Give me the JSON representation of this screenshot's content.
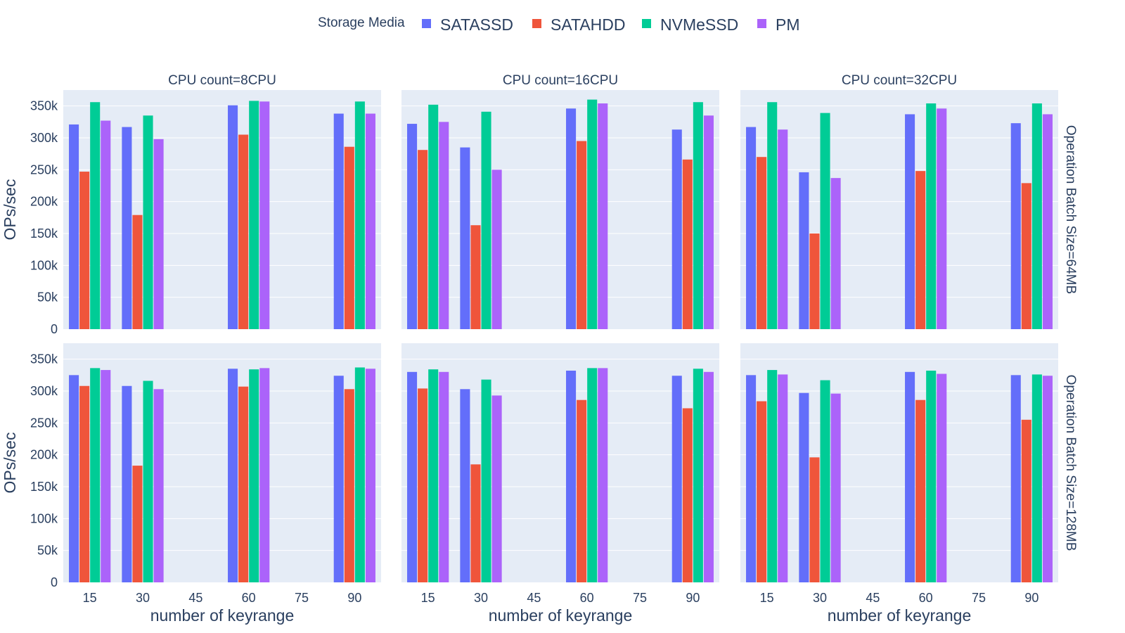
{
  "chart_data": {
    "type": "bar",
    "legend": {
      "title": "Storage Media",
      "placement": "top-center"
    },
    "series_names": [
      "SATASSD",
      "SATAHDD",
      "NVMeSSD",
      "PM"
    ],
    "colors": {
      "SATASSD": "#636efa",
      "SATAHDD": "#ef553b",
      "NVMeSSD": "#00cc96",
      "PM": "#ab63fa",
      "plot_bg": "#e5ecf6",
      "grid": "#ffffff",
      "text": "#2a3f5f"
    },
    "x_values": [
      15,
      30,
      60,
      90
    ],
    "x_ticks": [
      "15",
      "30",
      "45",
      "60",
      "75",
      "90"
    ],
    "xlim": [
      7.5,
      97.5
    ],
    "ylim": [
      0,
      375000
    ],
    "y_ticks": [
      {
        "value": 0,
        "label": "0"
      },
      {
        "value": 50000,
        "label": "50k"
      },
      {
        "value": 100000,
        "label": "100k"
      },
      {
        "value": 150000,
        "label": "150k"
      },
      {
        "value": 200000,
        "label": "200k"
      },
      {
        "value": 250000,
        "label": "250k"
      },
      {
        "value": 300000,
        "label": "300k"
      },
      {
        "value": 350000,
        "label": "350k"
      }
    ],
    "xlabel": "number of keyrange",
    "ylabel": "OPs/sec",
    "column_titles": [
      "CPU count=8CPU",
      "CPU count=16CPU",
      "CPU count=32CPU"
    ],
    "row_titles": [
      "Operation Batch Size=64MB",
      "Operation Batch Size=128MB"
    ],
    "panels": [
      {
        "row": 0,
        "col": 0,
        "series": [
          {
            "name": "SATASSD",
            "values": [
              321000,
              317000,
              351000,
              338000
            ]
          },
          {
            "name": "SATAHDD",
            "values": [
              247000,
              179000,
              305000,
              286000
            ]
          },
          {
            "name": "NVMeSSD",
            "values": [
              356000,
              335000,
              358000,
              357000
            ]
          },
          {
            "name": "PM",
            "values": [
              327000,
              298000,
              357000,
              338000
            ]
          }
        ]
      },
      {
        "row": 0,
        "col": 1,
        "series": [
          {
            "name": "SATASSD",
            "values": [
              322000,
              285000,
              346000,
              313000
            ]
          },
          {
            "name": "SATAHDD",
            "values": [
              281000,
              163000,
              295000,
              266000
            ]
          },
          {
            "name": "NVMeSSD",
            "values": [
              352000,
              341000,
              360000,
              356000
            ]
          },
          {
            "name": "PM",
            "values": [
              325000,
              250000,
              354000,
              335000
            ]
          }
        ]
      },
      {
        "row": 0,
        "col": 2,
        "series": [
          {
            "name": "SATASSD",
            "values": [
              317000,
              246000,
              337000,
              323000
            ]
          },
          {
            "name": "SATAHDD",
            "values": [
              270000,
              150000,
              248000,
              229000
            ]
          },
          {
            "name": "NVMeSSD",
            "values": [
              356000,
              339000,
              354000,
              354000
            ]
          },
          {
            "name": "PM",
            "values": [
              313000,
              237000,
              346000,
              337000
            ]
          }
        ]
      },
      {
        "row": 1,
        "col": 0,
        "series": [
          {
            "name": "SATASSD",
            "values": [
              325000,
              308000,
              335000,
              324000
            ]
          },
          {
            "name": "SATAHDD",
            "values": [
              308000,
              183000,
              307000,
              303000
            ]
          },
          {
            "name": "NVMeSSD",
            "values": [
              336000,
              316000,
              334000,
              337000
            ]
          },
          {
            "name": "PM",
            "values": [
              333000,
              303000,
              336000,
              335000
            ]
          }
        ]
      },
      {
        "row": 1,
        "col": 1,
        "series": [
          {
            "name": "SATASSD",
            "values": [
              330000,
              303000,
              332000,
              324000
            ]
          },
          {
            "name": "SATAHDD",
            "values": [
              304000,
              185000,
              286000,
              273000
            ]
          },
          {
            "name": "NVMeSSD",
            "values": [
              334000,
              318000,
              336000,
              335000
            ]
          },
          {
            "name": "PM",
            "values": [
              330000,
              293000,
              336000,
              330000
            ]
          }
        ]
      },
      {
        "row": 1,
        "col": 2,
        "series": [
          {
            "name": "SATASSD",
            "values": [
              325000,
              297000,
              330000,
              325000
            ]
          },
          {
            "name": "SATAHDD",
            "values": [
              284000,
              196000,
              286000,
              255000
            ]
          },
          {
            "name": "NVMeSSD",
            "values": [
              333000,
              317000,
              332000,
              326000
            ]
          },
          {
            "name": "PM",
            "values": [
              326000,
              296000,
              327000,
              324000
            ]
          }
        ]
      }
    ]
  }
}
